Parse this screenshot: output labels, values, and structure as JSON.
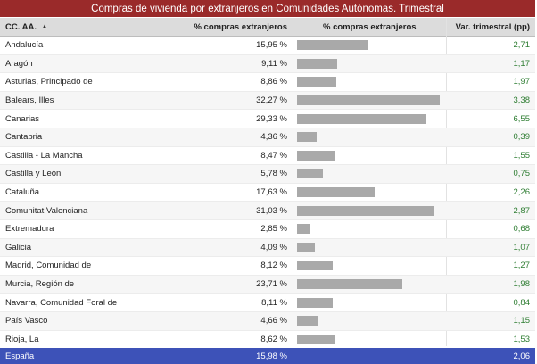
{
  "title": "Compras de vivienda por extranjeros en Comunidades Autónomas. Trimestral",
  "headers": {
    "region": "CC. AA.",
    "pct": "% compras extranjeros",
    "bar": "% compras extranjeros",
    "var": "Var. trimestral (pp)"
  },
  "rows": [
    {
      "name": "Andalucía",
      "pct": "15,95 %",
      "var": "2,71"
    },
    {
      "name": "Aragón",
      "pct": "9,11 %",
      "var": "1,17"
    },
    {
      "name": "Asturias, Principado de",
      "pct": "8,86 %",
      "var": "1,97"
    },
    {
      "name": "Balears, Illes",
      "pct": "32,27 %",
      "var": "3,38"
    },
    {
      "name": "Canarias",
      "pct": "29,33 %",
      "var": "6,55"
    },
    {
      "name": "Cantabria",
      "pct": "4,36 %",
      "var": "0,39"
    },
    {
      "name": "Castilla - La Mancha",
      "pct": "8,47 %",
      "var": "1,55"
    },
    {
      "name": "Castilla y León",
      "pct": "5,78 %",
      "var": "0,75"
    },
    {
      "name": "Cataluña",
      "pct": "17,63 %",
      "var": "2,26"
    },
    {
      "name": "Comunitat Valenciana",
      "pct": "31,03 %",
      "var": "2,87"
    },
    {
      "name": "Extremadura",
      "pct": "2,85 %",
      "var": "0,68"
    },
    {
      "name": "Galicia",
      "pct": "4,09 %",
      "var": "1,07"
    },
    {
      "name": "Madrid, Comunidad de",
      "pct": "8,12 %",
      "var": "1,27"
    },
    {
      "name": "Murcia, Región de",
      "pct": "23,71 %",
      "var": "1,98"
    },
    {
      "name": "Navarra, Comunidad Foral de",
      "pct": "8,11 %",
      "var": "0,84"
    },
    {
      "name": "País Vasco",
      "pct": "4,66 %",
      "var": "1,15"
    },
    {
      "name": "Rioja, La",
      "pct": "8,62 %",
      "var": "1,53"
    }
  ],
  "total": {
    "name": "España",
    "pct": "15,98 %",
    "var": "2,06"
  },
  "colors": {
    "title_bg": "#9a2a2a",
    "total_bg": "#3d52b8",
    "bar": "#a9a9a9",
    "var_text": "#2e7d32"
  },
  "chart_data": {
    "type": "bar",
    "categories": [
      "Andalucía",
      "Aragón",
      "Asturias, Principado de",
      "Balears, Illes",
      "Canarias",
      "Cantabria",
      "Castilla - La Mancha",
      "Castilla y León",
      "Cataluña",
      "Comunitat Valenciana",
      "Extremadura",
      "Galicia",
      "Madrid, Comunidad de",
      "Murcia, Región de",
      "Navarra, Comunidad Foral de",
      "País Vasco",
      "Rioja, La"
    ],
    "values": [
      15.95,
      9.11,
      8.86,
      32.27,
      29.33,
      4.36,
      8.47,
      5.78,
      17.63,
      31.03,
      2.85,
      4.09,
      8.12,
      23.71,
      8.11,
      4.66,
      8.62
    ],
    "orientation": "horizontal",
    "xlim": [
      0,
      32.27
    ]
  }
}
